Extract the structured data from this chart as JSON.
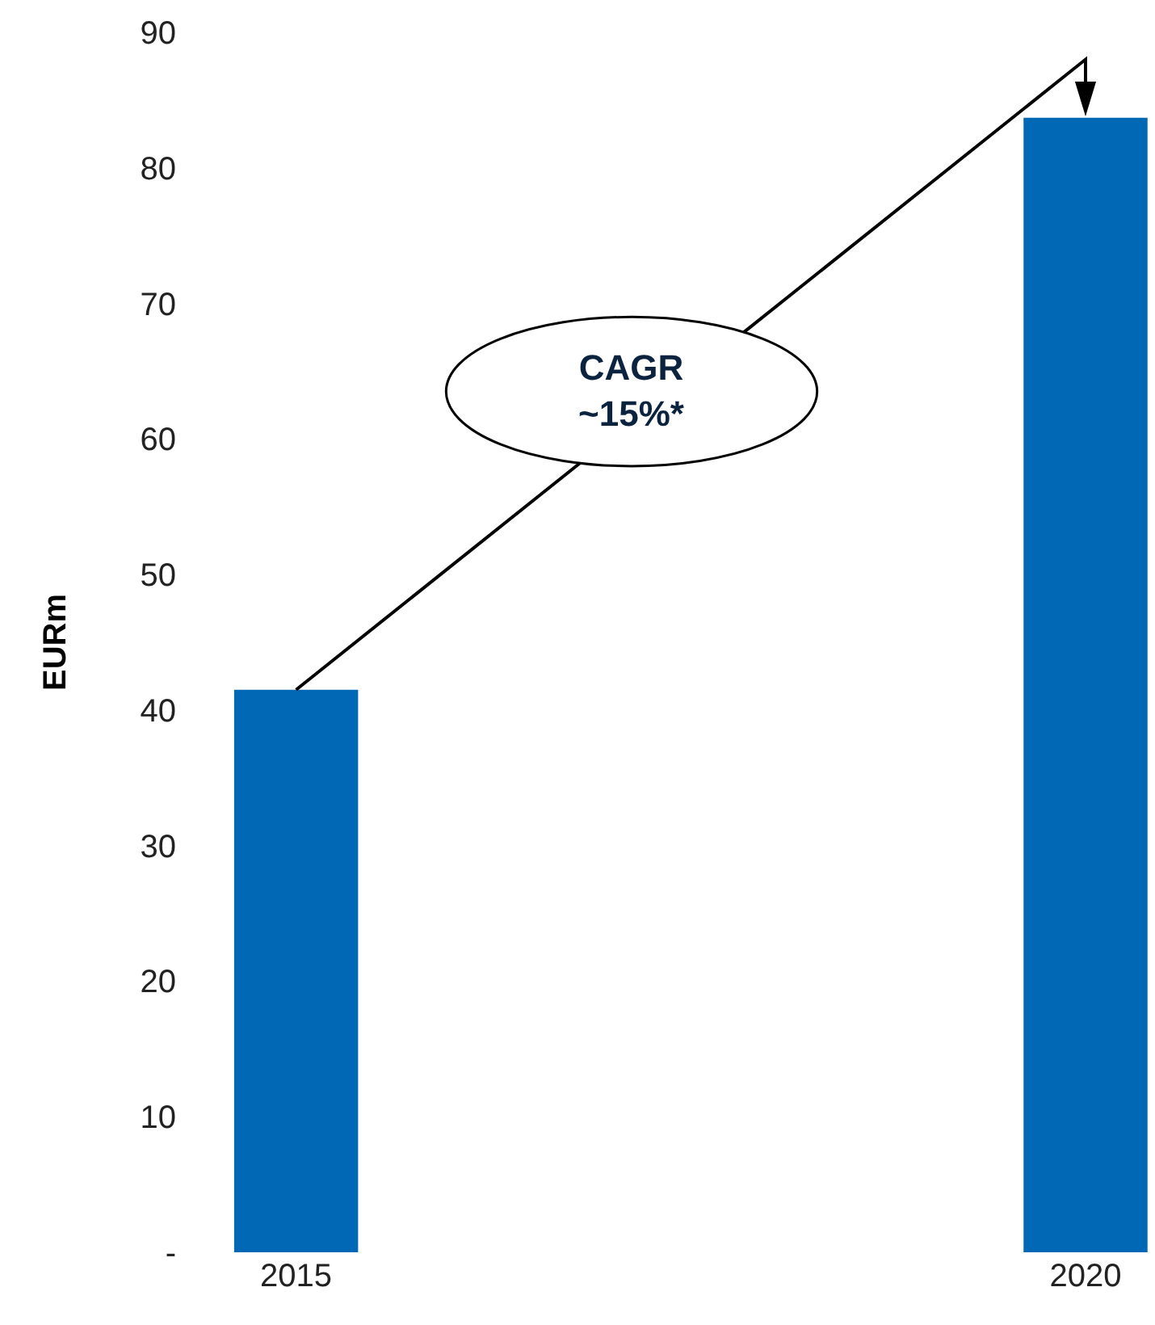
{
  "chart_data": {
    "type": "bar",
    "ylabel": "EURm",
    "categories": [
      "2015",
      "2020"
    ],
    "values": [
      41.5,
      83.7
    ],
    "color": "#0068b4",
    "ylim": [
      0,
      90
    ],
    "yticks": [
      {
        "value": 0,
        "label": "-"
      },
      10,
      20,
      30,
      40,
      50,
      60,
      70,
      80,
      90
    ],
    "annotations": [
      "CAGR\n~15%*"
    ]
  }
}
